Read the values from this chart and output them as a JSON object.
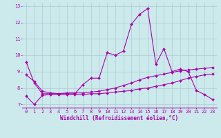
{
  "xlabel": "Windchill (Refroidissement éolien,°C)",
  "xlim": [
    -0.5,
    23.5
  ],
  "ylim": [
    6.8,
    13.2
  ],
  "yticks": [
    7,
    8,
    9,
    10,
    11,
    12,
    13
  ],
  "xticks": [
    0,
    1,
    2,
    3,
    4,
    5,
    6,
    7,
    8,
    9,
    10,
    11,
    12,
    13,
    14,
    15,
    16,
    17,
    18,
    19,
    20,
    21,
    22,
    23
  ],
  "bg_color": "#cce9ec",
  "line_color": "#aa00aa",
  "grid_color": "#aacdd4",
  "line1_x": [
    0,
    1,
    2,
    3,
    4,
    5,
    6,
    7,
    8,
    9,
    10,
    11,
    12,
    13,
    14,
    15,
    16,
    17,
    18,
    19,
    20,
    21,
    22,
    23
  ],
  "line1_y": [
    9.6,
    8.3,
    7.65,
    7.65,
    7.65,
    7.65,
    7.65,
    8.2,
    8.6,
    8.6,
    10.15,
    10.0,
    10.25,
    11.9,
    12.5,
    12.85,
    9.45,
    10.4,
    9.0,
    9.15,
    9.0,
    7.85,
    7.6,
    7.3
  ],
  "line2_x": [
    0,
    1,
    2,
    3,
    4,
    5,
    6,
    7,
    8,
    9,
    10,
    11,
    12,
    13,
    14,
    15,
    16,
    17,
    18,
    19,
    20,
    21,
    22,
    23
  ],
  "line2_y": [
    7.5,
    7.0,
    7.55,
    7.6,
    7.6,
    7.6,
    7.6,
    7.6,
    7.65,
    7.65,
    7.7,
    7.75,
    7.8,
    7.85,
    7.95,
    8.0,
    8.1,
    8.2,
    8.3,
    8.45,
    8.6,
    8.7,
    8.8,
    8.85
  ],
  "line3_x": [
    0,
    1,
    2,
    3,
    4,
    5,
    6,
    7,
    8,
    9,
    10,
    11,
    12,
    13,
    14,
    15,
    16,
    17,
    18,
    19,
    20,
    21,
    22,
    23
  ],
  "line3_y": [
    8.8,
    8.4,
    7.8,
    7.7,
    7.65,
    7.7,
    7.7,
    7.7,
    7.75,
    7.8,
    7.9,
    8.0,
    8.15,
    8.3,
    8.5,
    8.65,
    8.75,
    8.85,
    8.95,
    9.05,
    9.1,
    9.15,
    9.2,
    9.25
  ],
  "tick_fontsize": 5.0,
  "xlabel_fontsize": 5.5,
  "marker_size": 2.0,
  "linewidth": 0.8
}
